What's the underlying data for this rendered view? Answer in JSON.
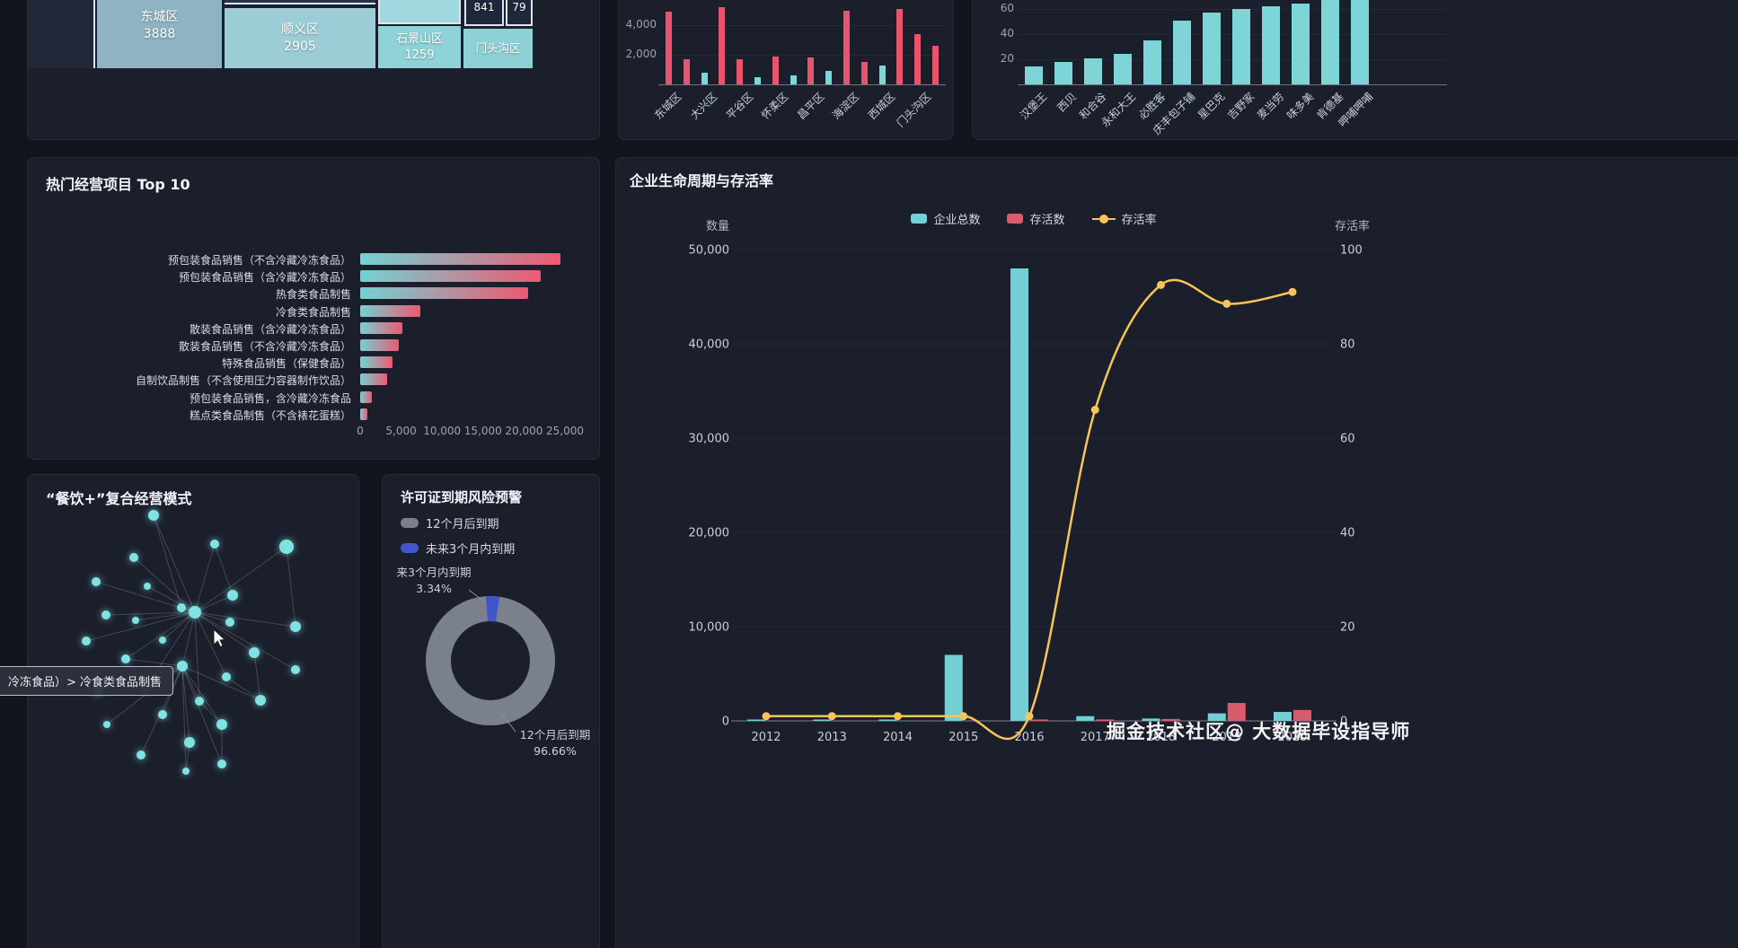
{
  "watermark": "掘金技术社区@ 大数据毕设指导师",
  "chart_data": [
    {
      "id": "district-treemap",
      "type": "treemap",
      "items": [
        {
          "name": "东城区",
          "value": "3888",
          "color": "#8fb3c2"
        },
        {
          "name": "顺义区",
          "value": "2905",
          "color": "#9ccdd6"
        },
        {
          "name": "石景山区",
          "value": "1259",
          "color": "#8fd2d8"
        },
        {
          "name": "门头沟区",
          "value": "",
          "color": "#8dd0d6"
        },
        {
          "name": "",
          "value": "841",
          "color": "#20273a"
        },
        {
          "name": "",
          "value": "79",
          "color": "#20273a"
        }
      ]
    },
    {
      "id": "district-bars",
      "type": "bar",
      "categories_visible": [
        "东城区",
        "大兴区",
        "平谷区",
        "怀柔区",
        "昌平区",
        "海淀区",
        "西城区",
        "门头沟区"
      ],
      "bars": [
        {
          "value": 4900,
          "color": "#e8546e"
        },
        {
          "value": 1700,
          "color": "#e8546e"
        },
        {
          "value": 800,
          "color": "#7ad8da"
        },
        {
          "value": 5200,
          "color": "#e8546e"
        },
        {
          "value": 1700,
          "color": "#e8546e"
        },
        {
          "value": 500,
          "color": "#7ad8da"
        },
        {
          "value": 1900,
          "color": "#e8546e"
        },
        {
          "value": 600,
          "color": "#7ad8da"
        },
        {
          "value": 1800,
          "color": "#e8546e"
        },
        {
          "value": 900,
          "color": "#7ad8da"
        },
        {
          "value": 5000,
          "color": "#e8546e"
        },
        {
          "value": 1500,
          "color": "#e8546e"
        },
        {
          "value": 1300,
          "color": "#7ad8da"
        },
        {
          "value": 5100,
          "color": "#e8546e"
        },
        {
          "value": 3400,
          "color": "#e8546e"
        },
        {
          "value": 2600,
          "color": "#e8546e"
        }
      ],
      "yticks": [
        {
          "label": "2,000",
          "value": 2000
        },
        {
          "label": "4,000",
          "value": 4000
        }
      ]
    },
    {
      "id": "brand-bars",
      "type": "bar",
      "categories": [
        "汉堡王",
        "西贝",
        "和合谷",
        "永和大王",
        "必胜客",
        "庆丰包子铺",
        "星巴克",
        "吉野家",
        "麦当劳",
        "味多美",
        "肯德基",
        "呷哺呷哺"
      ],
      "values": [
        14,
        18,
        21,
        24,
        35,
        51,
        57,
        60,
        62,
        64,
        67,
        69
      ],
      "bar_color": "#7dd5d8",
      "yticks": [
        {
          "label": "20",
          "value": 20
        },
        {
          "label": "40",
          "value": 40
        },
        {
          "label": "60",
          "value": 60
        }
      ]
    },
    {
      "id": "top10",
      "type": "bar-horizontal",
      "title": "热门经营项目 Top 10",
      "categories": [
        "预包装食品销售（不含冷藏冷冻食品）",
        "预包装食品销售（含冷藏冷冻食品）",
        "热食类食品制售",
        "冷食类食品制售",
        "散装食品销售（含冷藏冷冻食品）",
        "散装食品销售（不含冷藏冷冻食品）",
        "特殊食品销售（保健食品）",
        "自制饮品制售（不含使用压力容器制作饮品）",
        "预包装食品销售，含冷藏冷冻食品",
        "糕点类食品制售（不含裱花蛋糕）"
      ],
      "values": [
        24500,
        22000,
        20500,
        7300,
        5100,
        4700,
        4000,
        3300,
        1400,
        900
      ],
      "xticks": [
        {
          "label": "0",
          "value": 0
        },
        {
          "label": "5,000",
          "value": 5000
        },
        {
          "label": "10,000",
          "value": 10000
        },
        {
          "label": "15,000",
          "value": 15000
        },
        {
          "label": "20,000",
          "value": 20000
        },
        {
          "label": "25,000",
          "value": 25000
        }
      ],
      "bar_gradient": [
        "#72d2d4",
        "#ec5a72"
      ]
    },
    {
      "id": "network",
      "type": "graph",
      "title": "“餐饮+”复合经营模式",
      "tooltip": "冷冻食品）> 冷食类食品制售",
      "node_color": "#7fe3e3"
    },
    {
      "id": "expiry",
      "type": "pie",
      "title": "许可证到期风险预警",
      "legend": [
        {
          "label": "12个月后到期",
          "color": "#7b818c"
        },
        {
          "label": "未来3个月内到期",
          "color": "#4156c8"
        }
      ],
      "slices": [
        {
          "name": "12个月后到期",
          "value": 96.66,
          "pct": "96.66%",
          "color": "#7b818c"
        },
        {
          "name": "未来3个月内到期",
          "value": 3.34,
          "pct": "3.34%",
          "color": "#4156c8"
        }
      ],
      "callouts": [
        {
          "lines": [
            "来3个月内到期",
            "3.34%"
          ]
        },
        {
          "lines": [
            "12个月后到期",
            "96.66%"
          ]
        }
      ]
    },
    {
      "id": "lifecycle",
      "type": "bar+line",
      "title": "企业生命周期与存活率",
      "categories": [
        "2012",
        "2013",
        "2014",
        "2015",
        "2016",
        "2017",
        "2018",
        "2019",
        "2020"
      ],
      "series": [
        {
          "name": "企业总数",
          "type": "bar",
          "color": "#73cfd3",
          "values": [
            30,
            40,
            60,
            7000,
            48000,
            500,
            250,
            800,
            950
          ]
        },
        {
          "name": "存活数",
          "type": "bar",
          "color": "#d75c6e",
          "values": [
            0,
            0,
            0,
            0,
            100,
            150,
            200,
            1900,
            1150
          ]
        },
        {
          "name": "存活率",
          "type": "line",
          "color": "#f6c458",
          "values": [
            1,
            1,
            1,
            1,
            1,
            66,
            92.5,
            88.5,
            91
          ]
        }
      ],
      "y_left": {
        "label": "数量",
        "max": 50000,
        "ticks": [
          {
            "label": "0",
            "value": 0
          },
          {
            "label": "10,000",
            "value": 10000
          },
          {
            "label": "20,000",
            "value": 20000
          },
          {
            "label": "30,000",
            "value": 30000
          },
          {
            "label": "40,000",
            "value": 40000
          },
          {
            "label": "50,000",
            "value": 50000
          }
        ]
      },
      "y_right": {
        "label": "存活率",
        "max": 100,
        "ticks": [
          {
            "label": "0",
            "value": 0
          },
          {
            "label": "20",
            "value": 20
          },
          {
            "label": "40",
            "value": 40
          },
          {
            "label": "60",
            "value": 60
          },
          {
            "label": "80",
            "value": 80
          },
          {
            "label": "100",
            "value": 100
          }
        ]
      }
    }
  ]
}
